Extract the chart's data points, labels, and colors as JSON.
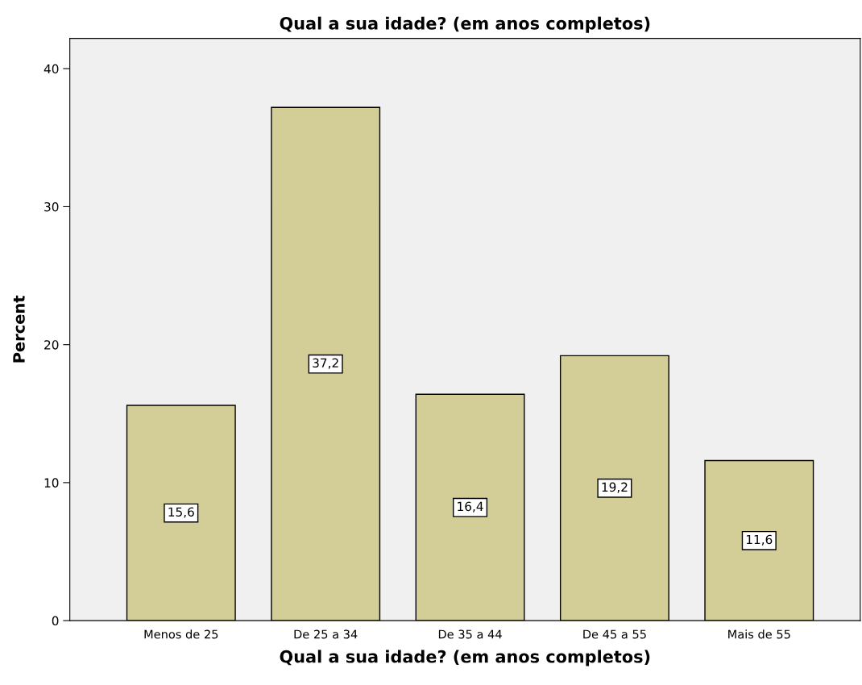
{
  "chart_data": {
    "type": "bar",
    "title": "Qual a sua idade? (em anos completos)",
    "xlabel": "Qual a sua idade? (em anos completos)",
    "ylabel": "Percent",
    "categories": [
      "Menos de 25",
      "De 25 a 34",
      "De 35 a 44",
      "De 45 a 55",
      "Mais de 55"
    ],
    "values": [
      15.6,
      37.2,
      16.4,
      19.2,
      11.6
    ],
    "value_labels": [
      "15,6",
      "37,2",
      "16,4",
      "19,2",
      "11,6"
    ],
    "color": "#d3ce98",
    "ylim": [
      0,
      42.2
    ],
    "yticks": [
      0,
      10,
      20,
      30,
      40
    ],
    "grid": false,
    "legend": false
  }
}
